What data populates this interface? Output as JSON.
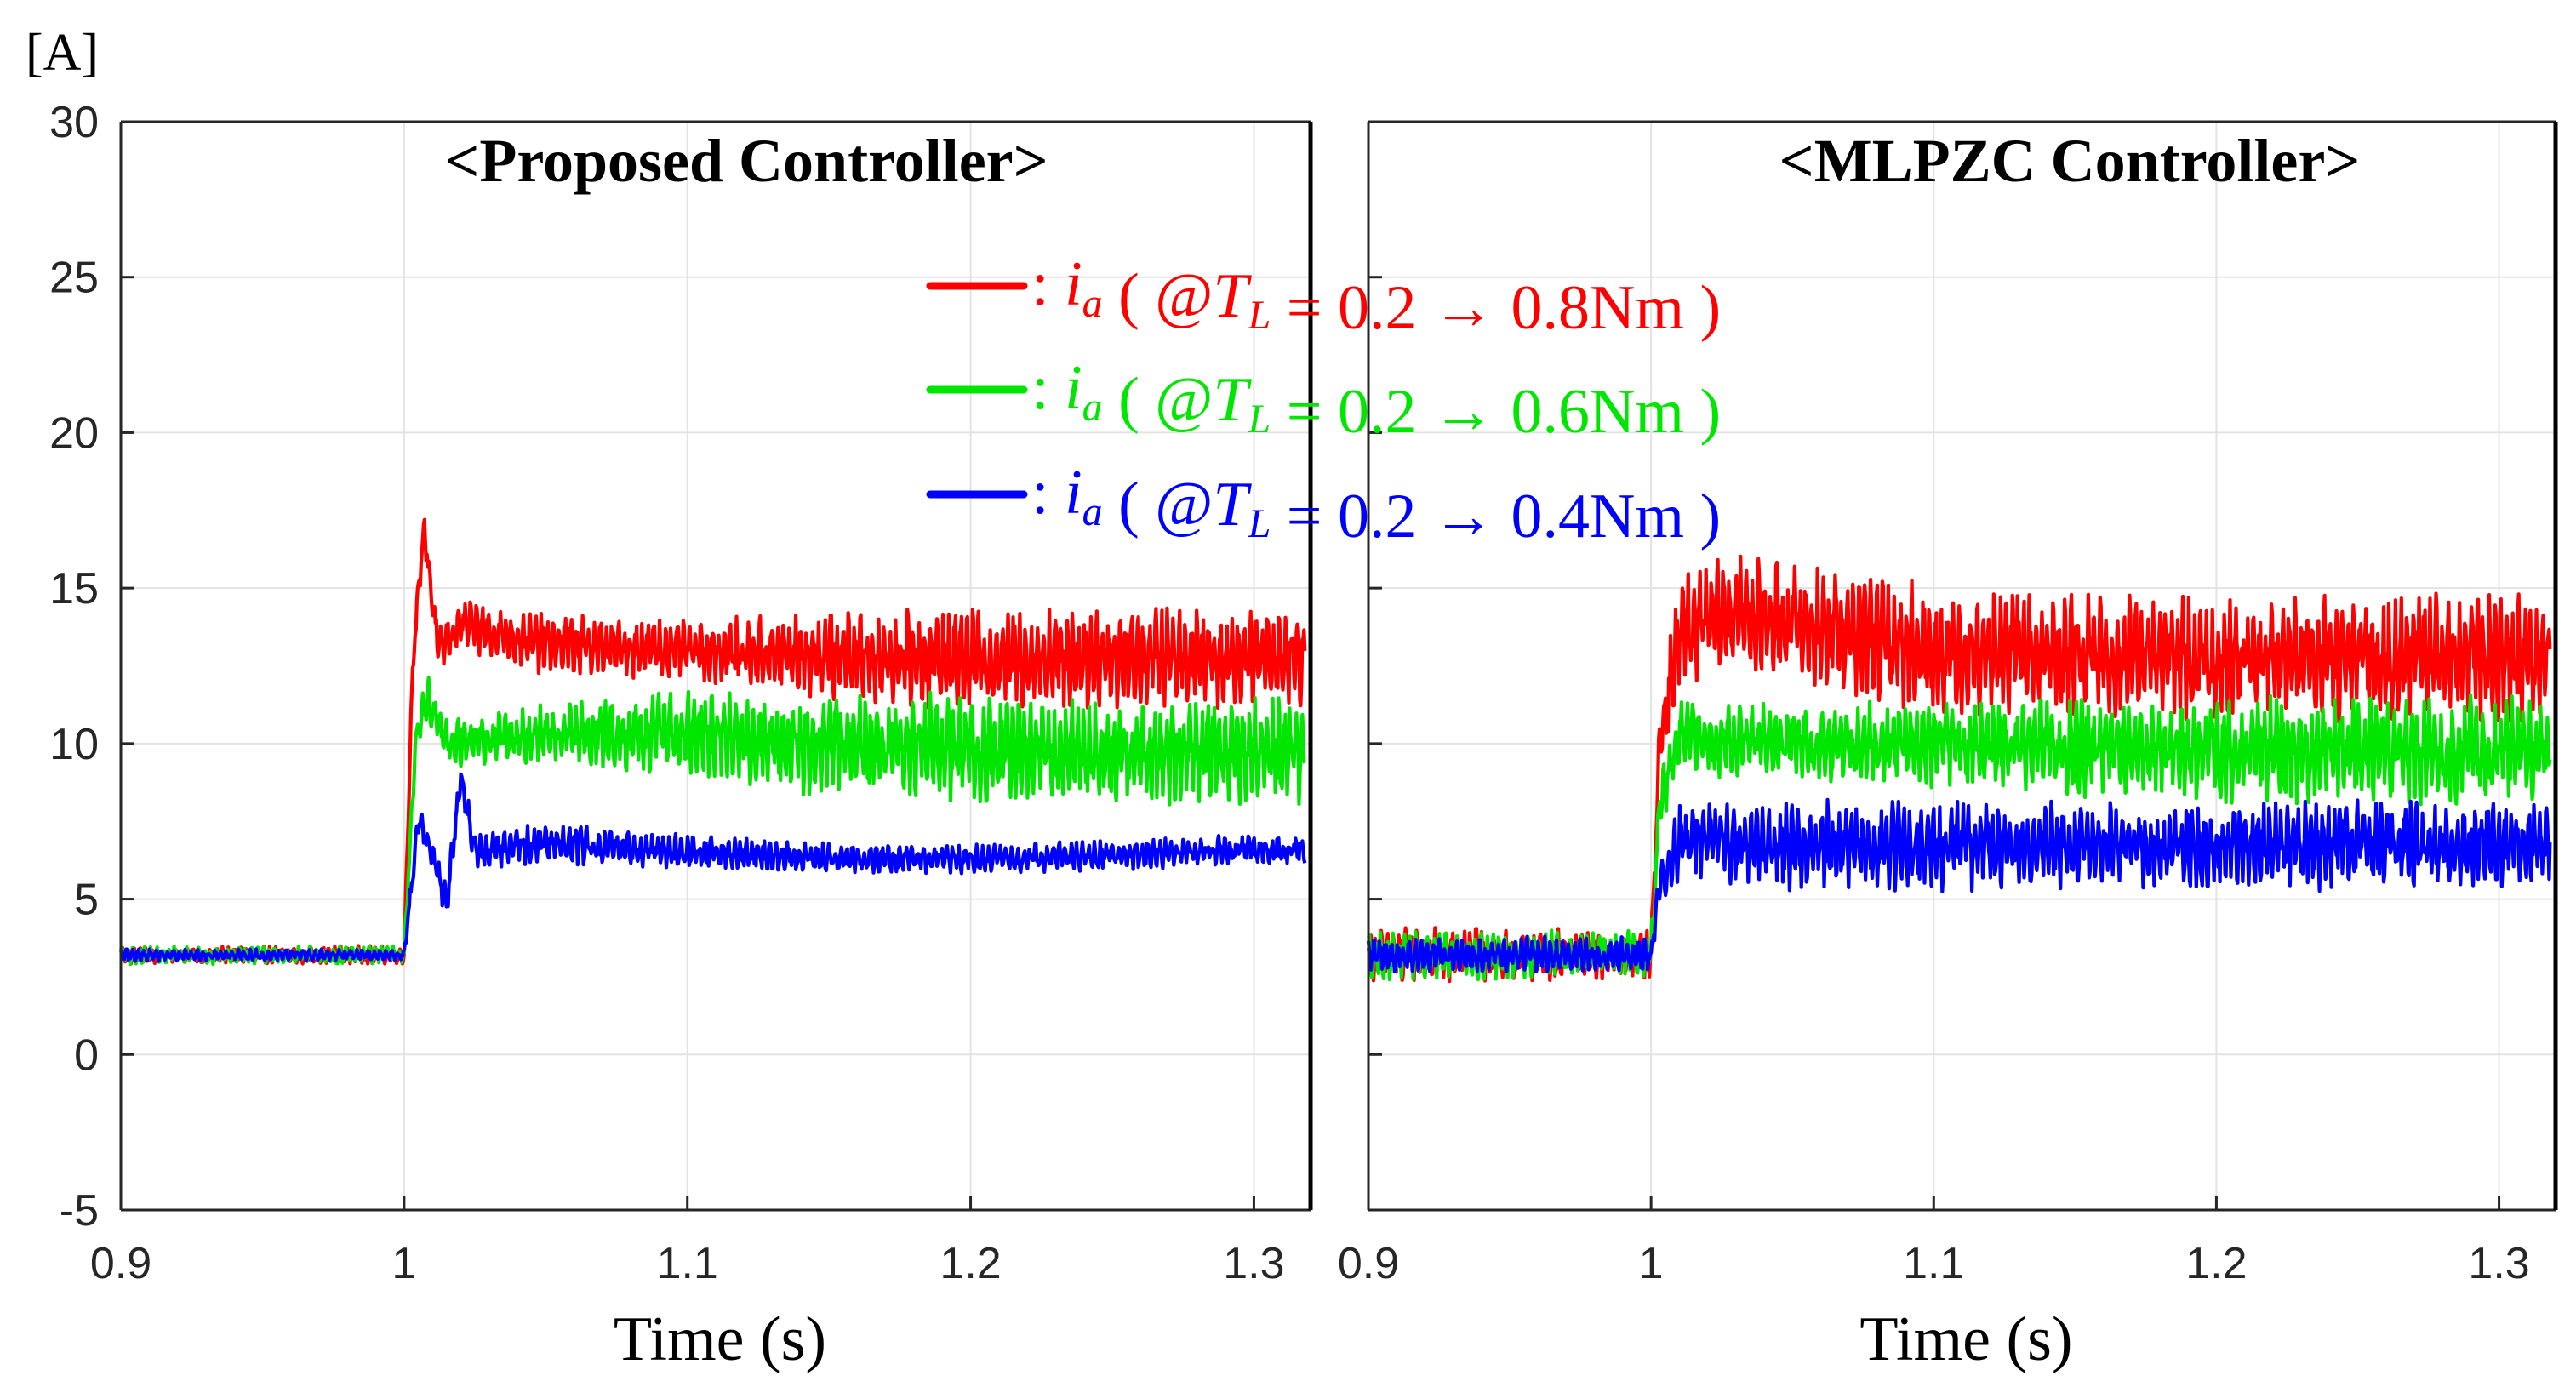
{
  "y_unit": "[A]",
  "colors": {
    "red": "#ff0000",
    "green": "#00e600",
    "blue": "#0000ff"
  },
  "legend": [
    {
      "series": "i_a (@T_L = 0.2 → 0.8Nm)",
      "prefix": ":",
      "var": "i",
      "sub": "a",
      "load_var": "T",
      "load_sub": "L",
      "value": "0.2 → 0.8Nm",
      "color": "#ff0000"
    },
    {
      "series": "i_a (@T_L = 0.2 → 0.6Nm)",
      "prefix": ":",
      "var": "i",
      "sub": "a",
      "load_var": "T",
      "load_sub": "L",
      "value": "0.2 → 0.6Nm",
      "color": "#00e600"
    },
    {
      "series": "i_a (@T_L = 0.2 → 0.4Nm)",
      "prefix": ":",
      "var": "i",
      "sub": "a",
      "load_var": "T",
      "load_sub": "L",
      "value": "0.2 → 0.4Nm",
      "color": "#0000ff"
    }
  ],
  "chart_data": [
    {
      "type": "line",
      "title": "<Proposed Controller>",
      "xlabel": "Time (s)",
      "ylabel": "[A]",
      "xlim": [
        0.9,
        1.32
      ],
      "ylim": [
        -5,
        30
      ],
      "xticks": [
        "0.9",
        "1",
        "1.1",
        "1.2",
        "1.3"
      ],
      "yticks": [
        "-5",
        "0",
        "5",
        "10",
        "15",
        "20",
        "25",
        "30"
      ],
      "grid": true,
      "step_time": 1.0,
      "series": [
        {
          "name": "i_a (@T_L = 0.2 → 0.8Nm)",
          "color": "#ff0000",
          "x": [
            0.9,
            1.0,
            1.003,
            1.007,
            1.012,
            1.02,
            1.05,
            1.1,
            1.15,
            1.2,
            1.25,
            1.3,
            1.318
          ],
          "y": [
            3.2,
            3.2,
            12.5,
            17.0,
            13.0,
            13.8,
            13.2,
            13.0,
            12.8,
            12.7,
            12.8,
            12.8,
            12.8
          ],
          "ripple": [
            0.3,
            0.3,
            0.5,
            0.5,
            0.8,
            0.9,
            1.0,
            1.0,
            1.5,
            1.7,
            1.7,
            1.7,
            1.7
          ]
        },
        {
          "name": "i_a (@T_L = 0.2 → 0.6Nm)",
          "color": "#00e600",
          "x": [
            0.9,
            1.0,
            1.004,
            1.008,
            1.015,
            1.05,
            1.1,
            1.15,
            1.2,
            1.25,
            1.3,
            1.318
          ],
          "y": [
            3.2,
            3.2,
            10.0,
            11.5,
            10.0,
            10.3,
            10.3,
            10.0,
            9.8,
            9.7,
            9.7,
            9.7
          ],
          "ripple": [
            0.3,
            0.3,
            0.5,
            0.8,
            0.8,
            1.0,
            1.4,
            1.8,
            1.8,
            1.8,
            1.8,
            1.8
          ]
        },
        {
          "name": "i_a (@T_L = 0.2 → 0.4Nm)",
          "color": "#0000ff",
          "x": [
            0.9,
            1.0,
            1.005,
            1.01,
            1.015,
            1.02,
            1.025,
            1.05,
            1.1,
            1.15,
            1.2,
            1.25,
            1.3,
            1.318
          ],
          "y": [
            3.2,
            3.2,
            7.5,
            6.5,
            4.8,
            9.0,
            6.5,
            6.8,
            6.5,
            6.3,
            6.3,
            6.4,
            6.6,
            6.6
          ],
          "ripple": [
            0.2,
            0.2,
            0.5,
            0.6,
            0.6,
            0.6,
            0.6,
            0.7,
            0.6,
            0.5,
            0.5,
            0.5,
            0.5,
            0.5
          ]
        }
      ]
    },
    {
      "type": "line",
      "title": "<MLPZC Controller>",
      "xlabel": "Time (s)",
      "ylabel": "",
      "xlim": [
        0.9,
        1.32
      ],
      "ylim": [
        -5,
        30
      ],
      "xticks": [
        "0.9",
        "1",
        "1.1",
        "1.2",
        "1.3"
      ],
      "yticks": [],
      "grid": true,
      "step_time": 1.0,
      "series": [
        {
          "name": "i_a (@T_L = 0.2 → 0.8Nm)",
          "color": "#ff0000",
          "x": [
            0.9,
            1.0,
            1.003,
            1.01,
            1.03,
            1.1,
            1.2,
            1.3,
            1.318
          ],
          "y": [
            3.2,
            3.2,
            10.0,
            13.5,
            14.2,
            13.0,
            12.7,
            12.8,
            12.8
          ],
          "ripple": [
            1.0,
            0.8,
            1.0,
            2.0,
            2.0,
            2.2,
            2.0,
            2.2,
            2.2
          ]
        },
        {
          "name": "i_a (@T_L = 0.2 → 0.6Nm)",
          "color": "#00e600",
          "x": [
            0.9,
            1.0,
            1.003,
            1.01,
            1.05,
            1.1,
            1.2,
            1.3,
            1.318
          ],
          "y": [
            3.2,
            3.2,
            8.0,
            10.2,
            10.0,
            10.0,
            9.8,
            9.8,
            9.8
          ],
          "ripple": [
            0.8,
            0.8,
            0.8,
            1.2,
            1.3,
            1.5,
            1.8,
            1.8,
            1.8
          ]
        },
        {
          "name": "i_a (@T_L = 0.2 → 0.4Nm)",
          "color": "#0000ff",
          "x": [
            0.9,
            1.0,
            1.003,
            1.01,
            1.05,
            1.1,
            1.2,
            1.3,
            1.318
          ],
          "y": [
            3.2,
            3.2,
            5.5,
            6.9,
            6.7,
            6.7,
            6.7,
            6.8,
            6.8
          ],
          "ripple": [
            0.6,
            0.6,
            0.6,
            1.3,
            1.5,
            1.5,
            1.5,
            1.5,
            1.5
          ]
        }
      ]
    }
  ]
}
